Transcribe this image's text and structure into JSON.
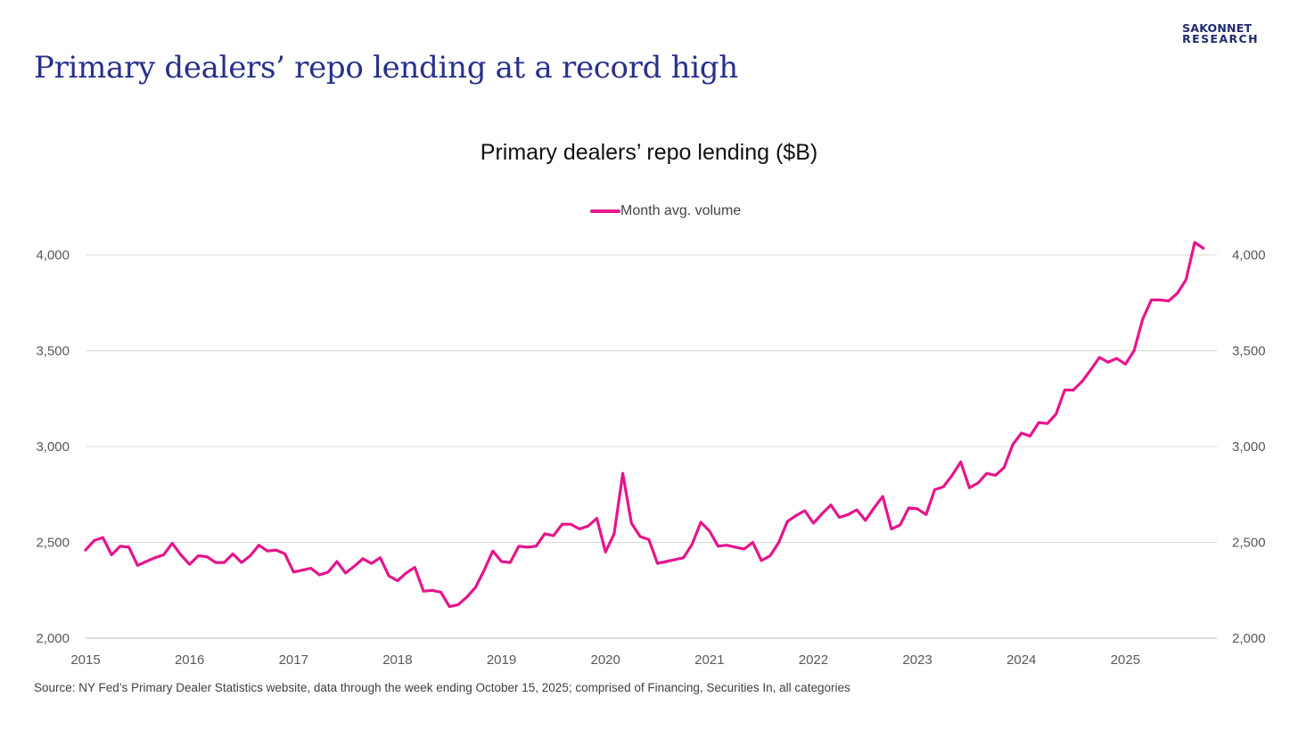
{
  "brand": {
    "line1": "SAKONNET",
    "line2": "RESEARCH"
  },
  "headline": "Primary dealers’ repo lending at a record high",
  "source_note": "Source: NY Fed’s Primary Dealer Statistics website, data through the week ending October 15, 2025; comprised of Financing, Securities In, all categories",
  "colors": {
    "series": "#e6158c",
    "headline": "#27318a",
    "grid": "#d9d9d9"
  },
  "chart_data": {
    "type": "line",
    "title": "Primary dealers’ repo lending ($B)",
    "xlabel": "",
    "ylabel": "",
    "xlim": [
      2015.0,
      2025.88
    ],
    "ylim": [
      2000,
      4000
    ],
    "y_ticks": [
      2000,
      2500,
      3000,
      3500,
      4000
    ],
    "y_tick_labels": [
      "2,000",
      "2,500",
      "3,000",
      "3,500",
      "4,000"
    ],
    "x_ticks": [
      "2015",
      "2016",
      "2017",
      "2018",
      "2019",
      "2020",
      "2021",
      "2022",
      "2023",
      "2024",
      "2025"
    ],
    "secondary_y_axis": true,
    "grid": true,
    "legend_position": "top-center",
    "series": [
      {
        "name": "Month avg. volume",
        "start": "2015-01",
        "frequency": "monthly",
        "values": [
          2460,
          2510,
          2525,
          2435,
          2480,
          2475,
          2380,
          2400,
          2420,
          2435,
          2495,
          2435,
          2385,
          2430,
          2425,
          2395,
          2395,
          2440,
          2395,
          2430,
          2485,
          2455,
          2460,
          2440,
          2345,
          2355,
          2365,
          2330,
          2345,
          2400,
          2340,
          2375,
          2415,
          2390,
          2420,
          2325,
          2300,
          2340,
          2370,
          2245,
          2250,
          2240,
          2165,
          2175,
          2215,
          2265,
          2355,
          2455,
          2400,
          2395,
          2480,
          2475,
          2480,
          2545,
          2535,
          2595,
          2595,
          2570,
          2585,
          2625,
          2450,
          2545,
          2860,
          2600,
          2530,
          2515,
          2390,
          2400,
          2410,
          2420,
          2490,
          2605,
          2560,
          2480,
          2485,
          2475,
          2465,
          2500,
          2405,
          2430,
          2500,
          2610,
          2640,
          2665,
          2600,
          2650,
          2695,
          2630,
          2645,
          2670,
          2615,
          2680,
          2740,
          2570,
          2590,
          2680,
          2675,
          2645,
          2775,
          2790,
          2850,
          2920,
          2785,
          2810,
          2860,
          2850,
          2890,
          3010,
          3070,
          3055,
          3125,
          3120,
          3170,
          3295,
          3295,
          3340,
          3400,
          3465,
          3440,
          3460,
          3430,
          3500,
          3665,
          3765,
          3765,
          3760,
          3800,
          3870,
          4065,
          4035
        ]
      }
    ]
  }
}
